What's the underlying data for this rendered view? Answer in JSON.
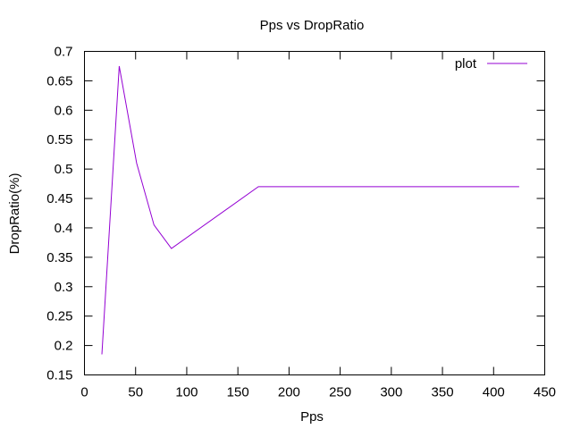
{
  "chart_data": {
    "type": "line",
    "title": "Pps vs DropRatio",
    "xlabel": "Pps",
    "ylabel": "DropRatio(%)",
    "xlim": [
      0,
      450
    ],
    "ylim": [
      0.15,
      0.7
    ],
    "xticks": [
      "0",
      "50",
      "100",
      "150",
      "200",
      "250",
      "300",
      "350",
      "400",
      "450"
    ],
    "yticks": [
      "0.15",
      "0.2",
      "0.25",
      "0.3",
      "0.35",
      "0.4",
      "0.45",
      "0.5",
      "0.55",
      "0.6",
      "0.65",
      "0.7"
    ],
    "grid": false,
    "legend_position": "top-right",
    "series": [
      {
        "name": "plot",
        "color": "#9400d3",
        "x": [
          17,
          34,
          51,
          68,
          85,
          170,
          425
        ],
        "y": [
          0.185,
          0.675,
          0.51,
          0.405,
          0.365,
          0.47,
          0.47
        ]
      }
    ]
  }
}
